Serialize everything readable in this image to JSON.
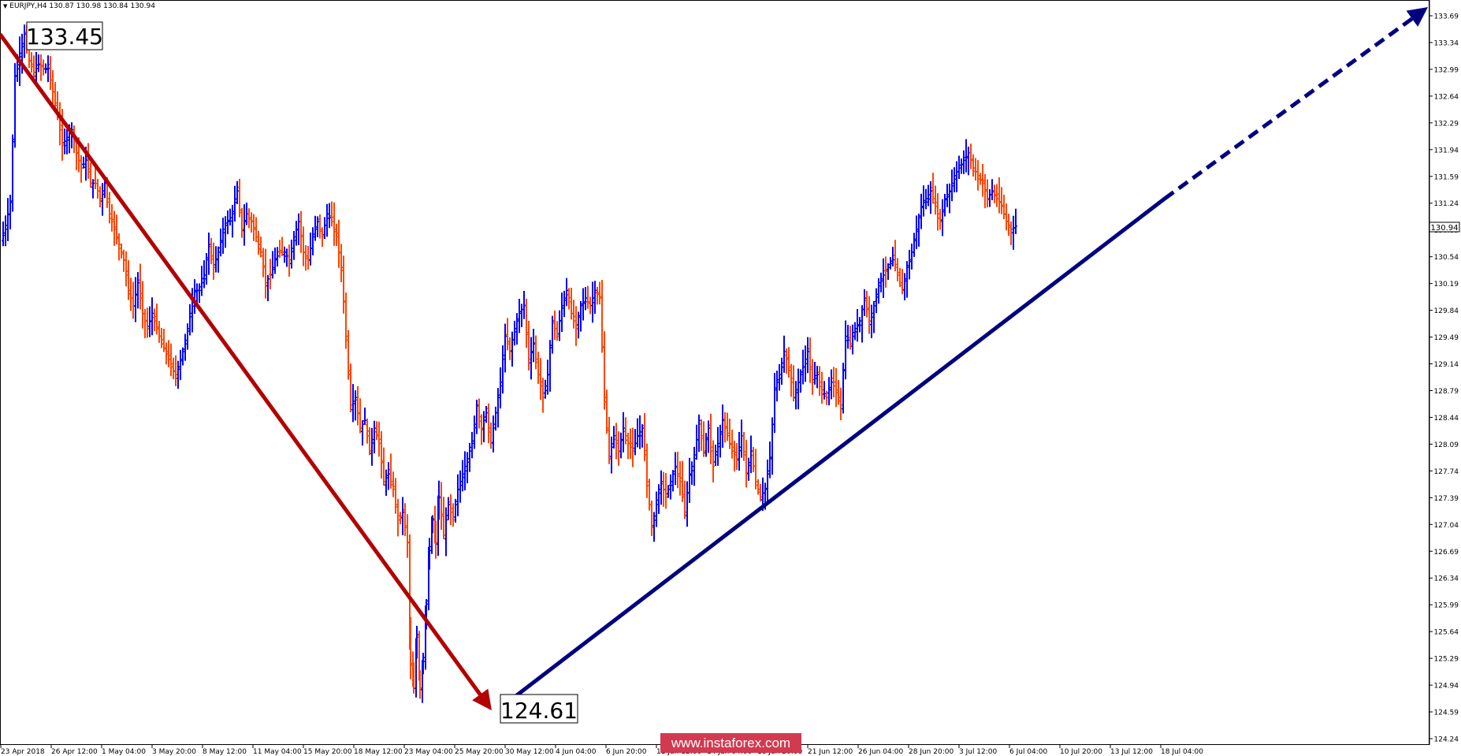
{
  "header": {
    "symbol_label": "EURJPY,H4",
    "ohlc_text": "130.87 130.98 130.84 130.94",
    "dropdown_icon": "triangle-down-icon"
  },
  "price_axis": {
    "ticks": [
      "133.69",
      "133.34",
      "132.99",
      "132.64",
      "132.29",
      "131.94",
      "131.59",
      "131.24",
      "130.89",
      "130.54",
      "130.19",
      "129.84",
      "129.49",
      "129.14",
      "128.79",
      "128.44",
      "128.09",
      "127.74",
      "127.39",
      "127.04",
      "126.69",
      "126.34",
      "125.99",
      "125.64",
      "125.29",
      "124.94",
      "124.59",
      "124.24"
    ],
    "current_price_label": "130.94"
  },
  "time_axis": {
    "labels": [
      "23 Apr 2018",
      "26 Apr 12:00",
      "1 May 04:00",
      "3 May 20:00",
      "8 May 12:00",
      "11 May 04:00",
      "15 May 20:00",
      "18 May 12:00",
      "23 May 04:00",
      "25 May 20:00",
      "30 May 12:00",
      "4 Jun 04:00",
      "6 Jun 20:00",
      "11 Jun 12:00",
      "14 Jun 04:00",
      "18 Jun 20:00",
      "21 Jun 12:00",
      "26 Jun 04:00",
      "28 Jun 20:00",
      "3 Jul 12:00",
      "6 Jul 04:00",
      "10 Jul 20:00",
      "13 Jul 12:00",
      "18 Jul 04:00"
    ]
  },
  "annotations": {
    "high_label": "133.45",
    "low_label": "124.61"
  },
  "watermark": "www.instaforex.com",
  "colors": {
    "up_bar": "#0000ff",
    "down_bar": "#ff4500",
    "down_arrow": "#b30000",
    "up_arrow": "#000080",
    "watermark_bg": "#d23a4f"
  },
  "chart_data": {
    "type": "ohlc",
    "symbol": "EURJPY",
    "timeframe": "H4",
    "ylim": [
      124.24,
      133.69
    ],
    "x": [
      "23 Apr 2018",
      "26 Apr 12:00",
      "1 May 04:00",
      "3 May 20:00",
      "8 May 12:00",
      "11 May 04:00",
      "15 May 20:00",
      "18 May 12:00",
      "23 May 04:00",
      "25 May 20:00",
      "30 May 12:00",
      "4 Jun 04:00",
      "6 Jun 20:00",
      "11 Jun 12:00",
      "14 Jun 04:00",
      "18 Jun 20:00",
      "21 Jun 12:00",
      "26 Jun 04:00",
      "28 Jun 20:00",
      "3 Jul 12:00",
      "6 Jul 04:00",
      "10 Jul 20:00",
      "13 Jul 12:00",
      "18 Jul 04:00"
    ],
    "close_trace": [
      [
        0,
        130.75
      ],
      [
        6,
        130.95
      ],
      [
        12,
        131.25
      ],
      [
        18,
        132.9
      ],
      [
        24,
        133.2
      ],
      [
        30,
        133.45
      ],
      [
        36,
        133.1
      ],
      [
        42,
        132.95
      ],
      [
        48,
        133.05
      ],
      [
        54,
        133.0
      ],
      [
        60,
        133.0
      ],
      [
        66,
        132.7
      ],
      [
        72,
        132.4
      ],
      [
        78,
        132.0
      ],
      [
        84,
        132.1
      ],
      [
        90,
        132.2
      ],
      [
        96,
        131.9
      ],
      [
        102,
        131.7
      ],
      [
        108,
        131.8
      ],
      [
        114,
        131.5
      ],
      [
        120,
        131.5
      ],
      [
        126,
        131.3
      ],
      [
        132,
        131.5
      ],
      [
        138,
        131.1
      ],
      [
        144,
        130.9
      ],
      [
        150,
        130.7
      ],
      [
        156,
        130.5
      ],
      [
        162,
        130.1
      ],
      [
        168,
        129.9
      ],
      [
        174,
        130.2
      ],
      [
        180,
        129.8
      ],
      [
        186,
        129.6
      ],
      [
        192,
        129.8
      ],
      [
        198,
        129.6
      ],
      [
        204,
        129.4
      ],
      [
        210,
        129.3
      ],
      [
        216,
        129.1
      ],
      [
        222,
        129.0
      ],
      [
        228,
        129.2
      ],
      [
        234,
        129.4
      ],
      [
        240,
        129.8
      ],
      [
        246,
        130.1
      ],
      [
        252,
        130.1
      ],
      [
        258,
        130.3
      ],
      [
        264,
        130.7
      ],
      [
        270,
        130.4
      ],
      [
        276,
        130.6
      ],
      [
        282,
        130.9
      ],
      [
        288,
        131.0
      ],
      [
        294,
        131.1
      ],
      [
        300,
        131.4
      ],
      [
        306,
        130.9
      ],
      [
        312,
        131.1
      ],
      [
        318,
        131.0
      ],
      [
        324,
        130.8
      ],
      [
        330,
        130.6
      ],
      [
        336,
        130.2
      ],
      [
        342,
        130.3
      ],
      [
        348,
        130.5
      ],
      [
        354,
        130.6
      ],
      [
        360,
        130.6
      ],
      [
        366,
        130.5
      ],
      [
        372,
        130.8
      ],
      [
        378,
        131.0
      ],
      [
        384,
        130.6
      ],
      [
        390,
        130.5
      ],
      [
        396,
        130.8
      ],
      [
        402,
        131.0
      ],
      [
        408,
        130.8
      ],
      [
        414,
        131.1
      ],
      [
        420,
        131.0
      ],
      [
        426,
        130.8
      ],
      [
        432,
        130.4
      ],
      [
        438,
        129.5
      ],
      [
        444,
        128.6
      ],
      [
        450,
        128.7
      ],
      [
        456,
        128.3
      ],
      [
        462,
        128.4
      ],
      [
        468,
        128.0
      ],
      [
        474,
        128.3
      ],
      [
        480,
        128.1
      ],
      [
        486,
        127.6
      ],
      [
        492,
        127.7
      ],
      [
        498,
        127.5
      ],
      [
        504,
        127.1
      ],
      [
        510,
        127.2
      ],
      [
        516,
        126.8
      ],
      [
        520,
        125.2
      ],
      [
        524,
        124.9
      ],
      [
        528,
        125.6
      ],
      [
        532,
        124.9
      ],
      [
        536,
        125.3
      ],
      [
        540,
        126.0
      ],
      [
        544,
        126.7
      ],
      [
        548,
        127.1
      ],
      [
        552,
        126.8
      ],
      [
        556,
        127.4
      ],
      [
        562,
        126.9
      ],
      [
        568,
        127.3
      ],
      [
        574,
        127.1
      ],
      [
        580,
        127.5
      ],
      [
        586,
        127.7
      ],
      [
        592,
        127.9
      ],
      [
        598,
        128.1
      ],
      [
        604,
        128.6
      ],
      [
        610,
        128.3
      ],
      [
        616,
        128.5
      ],
      [
        622,
        128.1
      ],
      [
        628,
        128.5
      ],
      [
        634,
        128.9
      ],
      [
        640,
        129.5
      ],
      [
        646,
        129.3
      ],
      [
        652,
        129.6
      ],
      [
        658,
        129.8
      ],
      [
        664,
        129.9
      ],
      [
        670,
        129.2
      ],
      [
        676,
        129.4
      ],
      [
        682,
        129.0
      ],
      [
        688,
        128.7
      ],
      [
        694,
        129.0
      ],
      [
        700,
        129.7
      ],
      [
        706,
        129.5
      ],
      [
        712,
        129.9
      ],
      [
        718,
        130.1
      ],
      [
        724,
        129.8
      ],
      [
        730,
        129.6
      ],
      [
        736,
        129.9
      ],
      [
        742,
        130.0
      ],
      [
        748,
        129.9
      ],
      [
        754,
        130.1
      ],
      [
        760,
        130.0
      ],
      [
        766,
        128.7
      ],
      [
        772,
        127.9
      ],
      [
        778,
        128.2
      ],
      [
        784,
        128.0
      ],
      [
        790,
        128.3
      ],
      [
        796,
        128.1
      ],
      [
        802,
        128.0
      ],
      [
        808,
        128.2
      ],
      [
        814,
        128.3
      ],
      [
        820,
        127.6
      ],
      [
        826,
        127.0
      ],
      [
        832,
        127.3
      ],
      [
        838,
        127.6
      ],
      [
        844,
        127.4
      ],
      [
        850,
        127.6
      ],
      [
        856,
        127.8
      ],
      [
        862,
        127.6
      ],
      [
        868,
        127.2
      ],
      [
        874,
        127.7
      ],
      [
        880,
        127.9
      ],
      [
        886,
        128.4
      ],
      [
        892,
        128.0
      ],
      [
        898,
        128.3
      ],
      [
        904,
        127.8
      ],
      [
        910,
        128.1
      ],
      [
        916,
        128.4
      ],
      [
        922,
        128.2
      ],
      [
        928,
        128.0
      ],
      [
        934,
        127.9
      ],
      [
        940,
        128.2
      ],
      [
        946,
        127.7
      ],
      [
        952,
        128.0
      ],
      [
        958,
        127.6
      ],
      [
        964,
        127.4
      ],
      [
        970,
        127.5
      ],
      [
        976,
        127.9
      ],
      [
        982,
        128.8
      ],
      [
        988,
        129.0
      ],
      [
        994,
        129.3
      ],
      [
        1000,
        129.1
      ],
      [
        1006,
        128.7
      ],
      [
        1012,
        128.9
      ],
      [
        1018,
        129.1
      ],
      [
        1024,
        129.3
      ],
      [
        1030,
        128.9
      ],
      [
        1036,
        129.0
      ],
      [
        1042,
        128.8
      ],
      [
        1048,
        128.7
      ],
      [
        1054,
        128.9
      ],
      [
        1060,
        128.8
      ],
      [
        1066,
        128.6
      ],
      [
        1072,
        129.5
      ],
      [
        1078,
        129.4
      ],
      [
        1084,
        129.6
      ],
      [
        1090,
        129.7
      ],
      [
        1096,
        130.0
      ],
      [
        1102,
        129.7
      ],
      [
        1108,
        129.9
      ],
      [
        1114,
        130.2
      ],
      [
        1120,
        130.3
      ],
      [
        1126,
        130.4
      ],
      [
        1132,
        130.5
      ],
      [
        1138,
        130.3
      ],
      [
        1144,
        130.1
      ],
      [
        1150,
        130.4
      ],
      [
        1156,
        130.6
      ],
      [
        1162,
        130.9
      ],
      [
        1168,
        131.2
      ],
      [
        1174,
        131.3
      ],
      [
        1180,
        131.4
      ],
      [
        1186,
        131.2
      ],
      [
        1192,
        131.0
      ],
      [
        1198,
        131.3
      ],
      [
        1204,
        131.4
      ],
      [
        1210,
        131.6
      ],
      [
        1216,
        131.7
      ],
      [
        1222,
        131.8
      ],
      [
        1228,
        131.9
      ],
      [
        1234,
        131.7
      ],
      [
        1240,
        131.6
      ],
      [
        1246,
        131.5
      ],
      [
        1252,
        131.3
      ],
      [
        1258,
        131.4
      ],
      [
        1264,
        131.3
      ],
      [
        1270,
        131.2
      ],
      [
        1276,
        131.0
      ],
      [
        1282,
        130.9
      ],
      [
        1288,
        130.94
      ]
    ],
    "series": [
      {
        "label_value": 133.45,
        "kind": "swing high"
      },
      {
        "label_value": 124.61,
        "kind": "swing low"
      },
      {
        "current_price": 130.94
      }
    ]
  }
}
